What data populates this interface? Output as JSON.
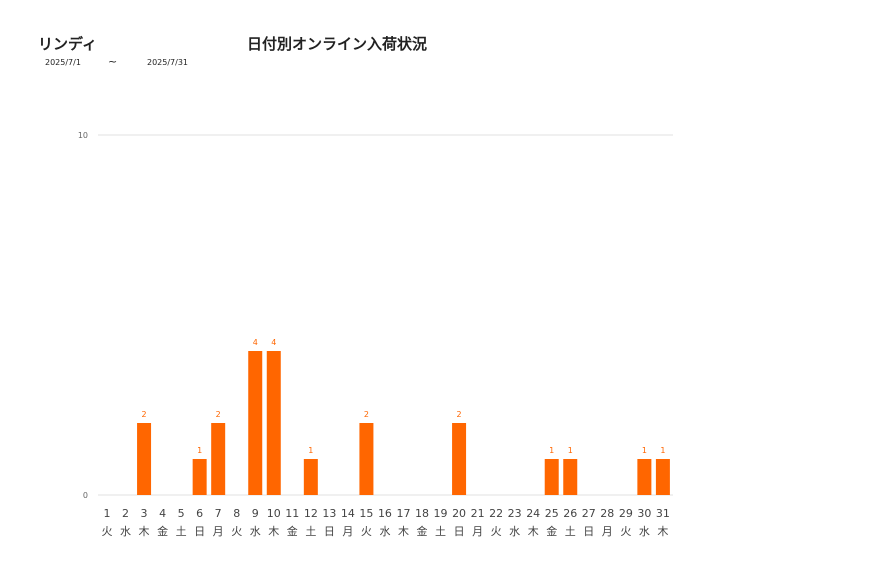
{
  "header": {
    "shop_name": "リンディ",
    "title": "日付別オンライン入荷状況",
    "date_start": "2025/7/1",
    "date_separator": "~",
    "date_end": "2025/7/31"
  },
  "colors": {
    "bar": "#ff6600",
    "label": "#ff6600",
    "grid": "#e0e0e0",
    "axis_text": "#444444"
  },
  "chart_data": {
    "type": "bar",
    "title": "日付別オンライン入荷状況",
    "categories": [
      "1",
      "2",
      "3",
      "4",
      "5",
      "6",
      "7",
      "8",
      "9",
      "10",
      "11",
      "12",
      "13",
      "14",
      "15",
      "16",
      "17",
      "18",
      "19",
      "20",
      "21",
      "22",
      "23",
      "24",
      "25",
      "26",
      "27",
      "28",
      "29",
      "30",
      "31"
    ],
    "weekdays": [
      "火",
      "水",
      "木",
      "金",
      "土",
      "日",
      "月",
      "火",
      "水",
      "木",
      "金",
      "土",
      "日",
      "月",
      "火",
      "水",
      "木",
      "金",
      "土",
      "日",
      "月",
      "火",
      "水",
      "木",
      "金",
      "土",
      "日",
      "月",
      "火",
      "水",
      "木"
    ],
    "values": [
      0,
      0,
      2,
      0,
      0,
      1,
      2,
      0,
      4,
      4,
      0,
      1,
      0,
      0,
      2,
      0,
      0,
      0,
      0,
      2,
      0,
      0,
      0,
      0,
      1,
      1,
      0,
      0,
      0,
      1,
      1
    ],
    "ylim": [
      0,
      10
    ],
    "yticks": [
      0,
      10
    ],
    "grid": true,
    "xlabel": "",
    "ylabel": ""
  }
}
